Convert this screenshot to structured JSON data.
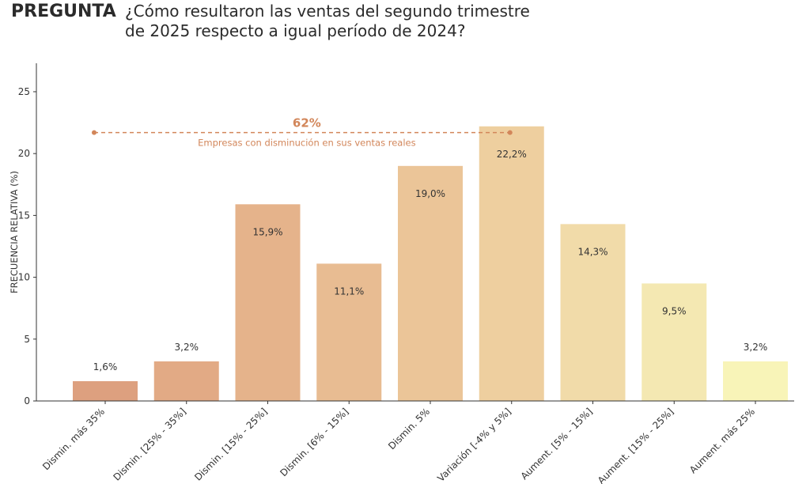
{
  "header": {
    "label": "PREGUNTA",
    "question_lines": [
      "¿Cómo resultaron las ventas del segundo trimestre",
      "de 2025 respecto a igual período de 2024?"
    ]
  },
  "chart_data": {
    "type": "bar",
    "title": "",
    "xlabel": "",
    "ylabel": "FRECUENCIA RELATIVA (%)",
    "ylim": [
      0,
      27.3
    ],
    "yticks": [
      0,
      5,
      10,
      15,
      20,
      25
    ],
    "grid": false,
    "categories": [
      "Dismin. más 35%",
      "Dismin. [25% - 35%]",
      "Dismin. [15% - 25%]",
      "Dismin. [6% - 15%]",
      "Dismin. 5%",
      "Variación [-4% y 5%]",
      "Aument. [5% - 15%]",
      "Aument. [15% - 25%]",
      "Aument. más 25%"
    ],
    "values": [
      1.6,
      3.2,
      15.9,
      11.1,
      19.0,
      22.2,
      14.3,
      9.5,
      3.2
    ],
    "value_labels": [
      "1,6%",
      "3,2%",
      "15,9%",
      "11,1%",
      "19,0%",
      "22,2%",
      "14,3%",
      "9,5%",
      "3,2%"
    ],
    "colors": [
      "#dda07f",
      "#e2aa85",
      "#e5b38b",
      "#e8bc92",
      "#ebc598",
      "#eecf9f",
      "#f1dba9",
      "#f4e8b2",
      "#f8f4b8"
    ],
    "annotation": {
      "value": "62%",
      "text": "Empresas con disminución en sus ventas reales",
      "span": [
        0,
        5
      ],
      "y": 21.7,
      "color": "#d2865a"
    }
  }
}
